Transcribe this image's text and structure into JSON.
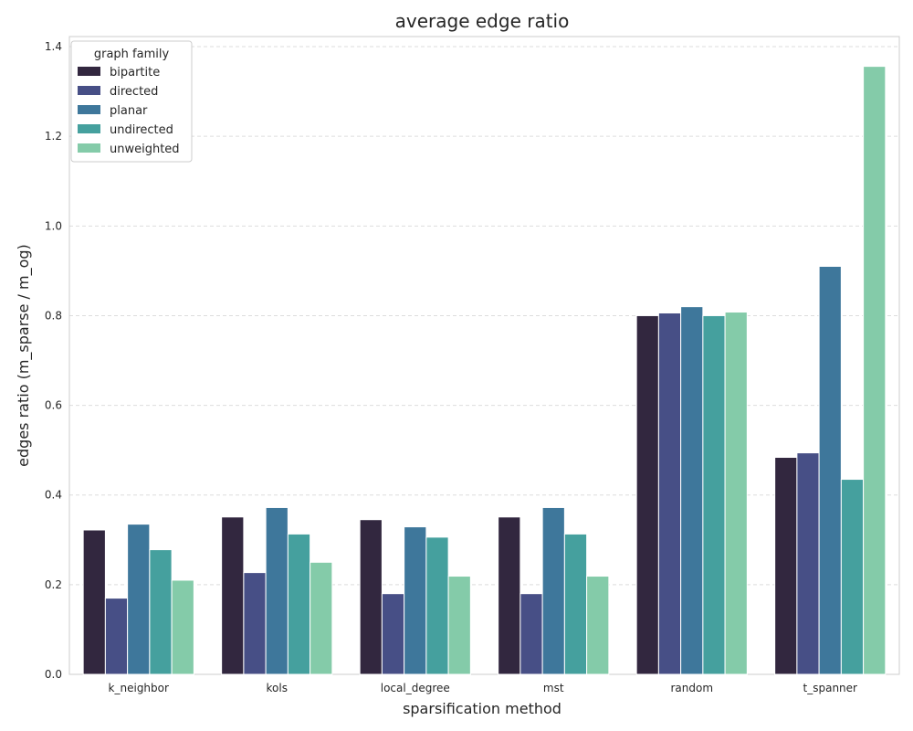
{
  "colors": {
    "bipartite": "#32273f",
    "directed": "#474f86",
    "planar": "#3e779b",
    "undirected": "#45a09e",
    "unweighted": "#84cba9",
    "grid": "#dddddd",
    "frame": "#cccccc"
  },
  "chart_data": {
    "type": "bar",
    "title": "average edge ratio",
    "xlabel": "sparsification method",
    "ylabel": "edges ratio (m_sparse / m_og)",
    "ylim": [
      0,
      1.4
    ],
    "yticks": [
      "0.0",
      "0.2",
      "0.4",
      "0.6",
      "0.8",
      "1.0",
      "1.2",
      "1.4"
    ],
    "grid": true,
    "legend_title": "graph family",
    "legend_placement": "top-left",
    "categories": [
      "k_neighbor",
      "kols",
      "local_degree",
      "mst",
      "random",
      "t_spanner"
    ],
    "series": [
      {
        "name": "bipartite",
        "values": [
          0.322,
          0.351,
          0.345,
          0.351,
          0.8,
          0.484
        ]
      },
      {
        "name": "directed",
        "values": [
          0.17,
          0.227,
          0.18,
          0.18,
          0.806,
          0.494
        ]
      },
      {
        "name": "planar",
        "values": [
          0.335,
          0.372,
          0.329,
          0.372,
          0.82,
          0.91
        ]
      },
      {
        "name": "undirected",
        "values": [
          0.278,
          0.313,
          0.306,
          0.313,
          0.8,
          0.435
        ]
      },
      {
        "name": "unweighted",
        "values": [
          0.21,
          0.25,
          0.219,
          0.219,
          0.808,
          1.356
        ]
      }
    ]
  }
}
